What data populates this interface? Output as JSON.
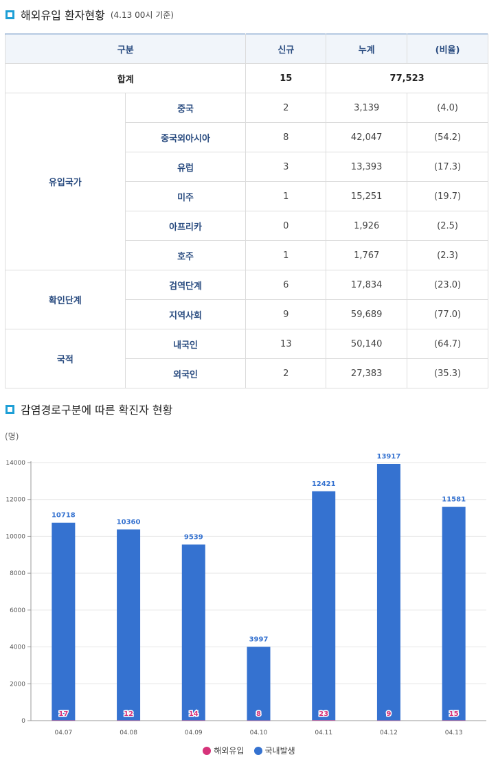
{
  "section1": {
    "title": "해외유입 환자현황",
    "subtitle": "(4.13 00시 기준)"
  },
  "table": {
    "headers": [
      "구분",
      "신규",
      "누계",
      "(비율)"
    ],
    "total": {
      "label": "합계",
      "new": "15",
      "cumulative": "77,523"
    },
    "groups": [
      {
        "label": "유입국가",
        "rows": [
          {
            "label": "중국",
            "new": "2",
            "cumulative": "3,139",
            "ratio": "(4.0)"
          },
          {
            "label": "중국외아시아",
            "new": "8",
            "cumulative": "42,047",
            "ratio": "(54.2)"
          },
          {
            "label": "유럽",
            "new": "3",
            "cumulative": "13,393",
            "ratio": "(17.3)"
          },
          {
            "label": "미주",
            "new": "1",
            "cumulative": "15,251",
            "ratio": "(19.7)"
          },
          {
            "label": "아프리카",
            "new": "0",
            "cumulative": "1,926",
            "ratio": "(2.5)"
          },
          {
            "label": "호주",
            "new": "1",
            "cumulative": "1,767",
            "ratio": "(2.3)"
          }
        ]
      },
      {
        "label": "확인단계",
        "rows": [
          {
            "label": "검역단계",
            "new": "6",
            "cumulative": "17,834",
            "ratio": "(23.0)"
          },
          {
            "label": "지역사회",
            "new": "9",
            "cumulative": "59,689",
            "ratio": "(77.0)"
          }
        ]
      },
      {
        "label": "국적",
        "rows": [
          {
            "label": "내국인",
            "new": "13",
            "cumulative": "50,140",
            "ratio": "(64.7)"
          },
          {
            "label": "외국인",
            "new": "2",
            "cumulative": "27,383",
            "ratio": "(35.3)"
          }
        ]
      }
    ]
  },
  "section2": {
    "title": "감염경로구분에 따른 확진자 현황"
  },
  "colors": {
    "domestic": "#3572d0",
    "overseas": "#d6337a",
    "grid": "#e6e6e6"
  },
  "chart_data": {
    "type": "bar",
    "stacked": true,
    "unit": "(명)",
    "categories": [
      "04.07",
      "04.08",
      "04.09",
      "04.10",
      "04.11",
      "04.12",
      "04.13"
    ],
    "series": [
      {
        "name": "해외유입",
        "values": [
          17,
          12,
          14,
          8,
          23,
          9,
          15
        ]
      },
      {
        "name": "국내발생",
        "values": [
          10718,
          10360,
          9539,
          3997,
          12421,
          13917,
          11581
        ]
      }
    ],
    "yticks": [
      0,
      2000,
      4000,
      6000,
      8000,
      10000,
      12000,
      14000
    ],
    "ylim": [
      0,
      14000
    ],
    "grid": true,
    "legend": "bottom-center"
  }
}
